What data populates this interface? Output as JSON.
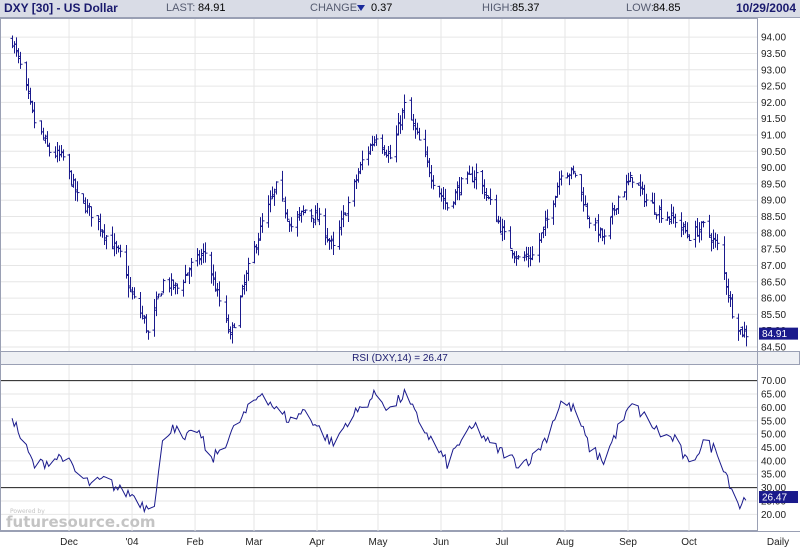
{
  "header": {
    "title": "DXY [30] - US Dollar",
    "last_label": "LAST:",
    "last_value": "84.91",
    "change_label": "CHANGE:",
    "change_value": "0.37",
    "change_direction": "down",
    "high_label": "HIGH:",
    "high_value": "85.37",
    "low_label": "LOW:",
    "low_value": "84.85",
    "date": "10/29/2004"
  },
  "watermark": {
    "small": "Powered by",
    "brand": "futuresource.com"
  },
  "colors": {
    "series": "#1a1a8c",
    "header_bg": "#d9dce6",
    "label_bg": "#1a1a8c",
    "grid": "#e6e6e6"
  },
  "chart_data": [
    {
      "type": "bar",
      "style": "ohlc",
      "series_name": "DXY",
      "ylim": [
        84.5,
        94.25
      ],
      "y_ticks": [
        "94.00",
        "93.50",
        "93.00",
        "92.50",
        "92.00",
        "91.50",
        "91.00",
        "90.50",
        "90.00",
        "89.50",
        "89.00",
        "88.50",
        "88.00",
        "87.50",
        "87.00",
        "86.50",
        "86.00",
        "85.50",
        "85.00",
        "84.50"
      ],
      "x_tick_labels": [
        "Dec",
        "'04",
        "Feb",
        "Mar",
        "Apr",
        "May",
        "Jun",
        "Jul",
        "Aug",
        "Sep",
        "Oct",
        "Daily"
      ],
      "last_label": "84.91",
      "anchors_close": [
        [
          "2003-11-03",
          93.9
        ],
        [
          "2003-11-07",
          93.1
        ],
        [
          "2003-11-14",
          91.4
        ],
        [
          "2003-11-21",
          90.5
        ],
        [
          "2003-11-28",
          90.3
        ],
        [
          "2003-12-05",
          89.1
        ],
        [
          "2003-12-12",
          88.6
        ],
        [
          "2003-12-19",
          87.9
        ],
        [
          "2003-12-26",
          87.3
        ],
        [
          "2003-12-31",
          86.2
        ],
        [
          "2004-01-07",
          85.3
        ],
        [
          "2004-01-09",
          84.9
        ],
        [
          "2004-01-16",
          86.5
        ],
        [
          "2004-01-23",
          86.3
        ],
        [
          "2004-01-30",
          87.0
        ],
        [
          "2004-02-06",
          87.4
        ],
        [
          "2004-02-13",
          85.9
        ],
        [
          "2004-02-18",
          84.8
        ],
        [
          "2004-02-27",
          86.9
        ],
        [
          "2004-03-05",
          88.3
        ],
        [
          "2004-03-12",
          89.4
        ],
        [
          "2004-03-19",
          88.2
        ],
        [
          "2004-03-26",
          88.7
        ],
        [
          "2004-04-02",
          88.4
        ],
        [
          "2004-04-09",
          87.5
        ],
        [
          "2004-04-16",
          88.9
        ],
        [
          "2004-04-23",
          90.2
        ],
        [
          "2004-04-30",
          91.0
        ],
        [
          "2004-05-07",
          90.3
        ],
        [
          "2004-05-14",
          91.9
        ],
        [
          "2004-05-21",
          90.8
        ],
        [
          "2004-05-28",
          89.6
        ],
        [
          "2004-06-04",
          88.8
        ],
        [
          "2004-06-11",
          89.5
        ],
        [
          "2004-06-18",
          89.8
        ],
        [
          "2004-06-25",
          88.9
        ],
        [
          "2004-07-02",
          87.9
        ],
        [
          "2004-07-09",
          87.2
        ],
        [
          "2004-07-16",
          87.3
        ],
        [
          "2004-07-23",
          88.4
        ],
        [
          "2004-07-30",
          89.9
        ],
        [
          "2004-08-06",
          89.8
        ],
        [
          "2004-08-13",
          88.4
        ],
        [
          "2004-08-20",
          87.8
        ],
        [
          "2004-08-27",
          89.1
        ],
        [
          "2004-09-03",
          89.7
        ],
        [
          "2004-09-10",
          89.0
        ],
        [
          "2004-09-17",
          88.6
        ],
        [
          "2004-09-24",
          88.4
        ],
        [
          "2004-10-01",
          87.9
        ],
        [
          "2004-10-08",
          88.2
        ],
        [
          "2004-10-15",
          87.6
        ],
        [
          "2004-10-22",
          85.6
        ],
        [
          "2004-10-26",
          85.0
        ],
        [
          "2004-10-29",
          84.91
        ]
      ]
    },
    {
      "type": "line",
      "series_name": "RSI (DXY,14)",
      "title": "RSI (DXY,14) = 26.47",
      "ylim": [
        17.5,
        72.5
      ],
      "y_ticks": [
        "70.00",
        "65.00",
        "60.00",
        "55.00",
        "50.00",
        "45.00",
        "40.00",
        "35.00",
        "30.00",
        "25.00",
        "20.00"
      ],
      "reference_lines": [
        70,
        30
      ],
      "last_label": "26.47",
      "anchors": [
        [
          "2003-11-03",
          57
        ],
        [
          "2003-11-07",
          49
        ],
        [
          "2003-11-14",
          38
        ],
        [
          "2003-11-21",
          40
        ],
        [
          "2003-11-28",
          42
        ],
        [
          "2003-12-05",
          35
        ],
        [
          "2003-12-12",
          31
        ],
        [
          "2003-12-19",
          33
        ],
        [
          "2003-12-26",
          29
        ],
        [
          "2004-01-02",
          27
        ],
        [
          "2004-01-07",
          23
        ],
        [
          "2004-01-12",
          25
        ],
        [
          "2004-01-16",
          46
        ],
        [
          "2004-01-21",
          54
        ],
        [
          "2004-01-26",
          47
        ],
        [
          "2004-02-02",
          52
        ],
        [
          "2004-02-09",
          40
        ],
        [
          "2004-02-16",
          47
        ],
        [
          "2004-02-23",
          55
        ],
        [
          "2004-03-02",
          63
        ],
        [
          "2004-03-05",
          66
        ],
        [
          "2004-03-12",
          59
        ],
        [
          "2004-03-19",
          55
        ],
        [
          "2004-03-26",
          59
        ],
        [
          "2004-04-02",
          52
        ],
        [
          "2004-04-09",
          46
        ],
        [
          "2004-04-16",
          55
        ],
        [
          "2004-04-23",
          60
        ],
        [
          "2004-04-30",
          65
        ],
        [
          "2004-05-07",
          59
        ],
        [
          "2004-05-14",
          65
        ],
        [
          "2004-05-21",
          55
        ],
        [
          "2004-05-28",
          47
        ],
        [
          "2004-06-04",
          39
        ],
        [
          "2004-06-11",
          48
        ],
        [
          "2004-06-18",
          53
        ],
        [
          "2004-06-25",
          46
        ],
        [
          "2004-07-02",
          43
        ],
        [
          "2004-07-09",
          39
        ],
        [
          "2004-07-16",
          41
        ],
        [
          "2004-07-23",
          49
        ],
        [
          "2004-07-30",
          62
        ],
        [
          "2004-08-06",
          59
        ],
        [
          "2004-08-13",
          45
        ],
        [
          "2004-08-20",
          40
        ],
        [
          "2004-08-27",
          52
        ],
        [
          "2004-09-03",
          61
        ],
        [
          "2004-09-10",
          56
        ],
        [
          "2004-09-17",
          50
        ],
        [
          "2004-09-24",
          48
        ],
        [
          "2004-10-01",
          38
        ],
        [
          "2004-10-08",
          47
        ],
        [
          "2004-10-15",
          44
        ],
        [
          "2004-10-22",
          30
        ],
        [
          "2004-10-26",
          23
        ],
        [
          "2004-10-29",
          26.47
        ]
      ]
    }
  ]
}
